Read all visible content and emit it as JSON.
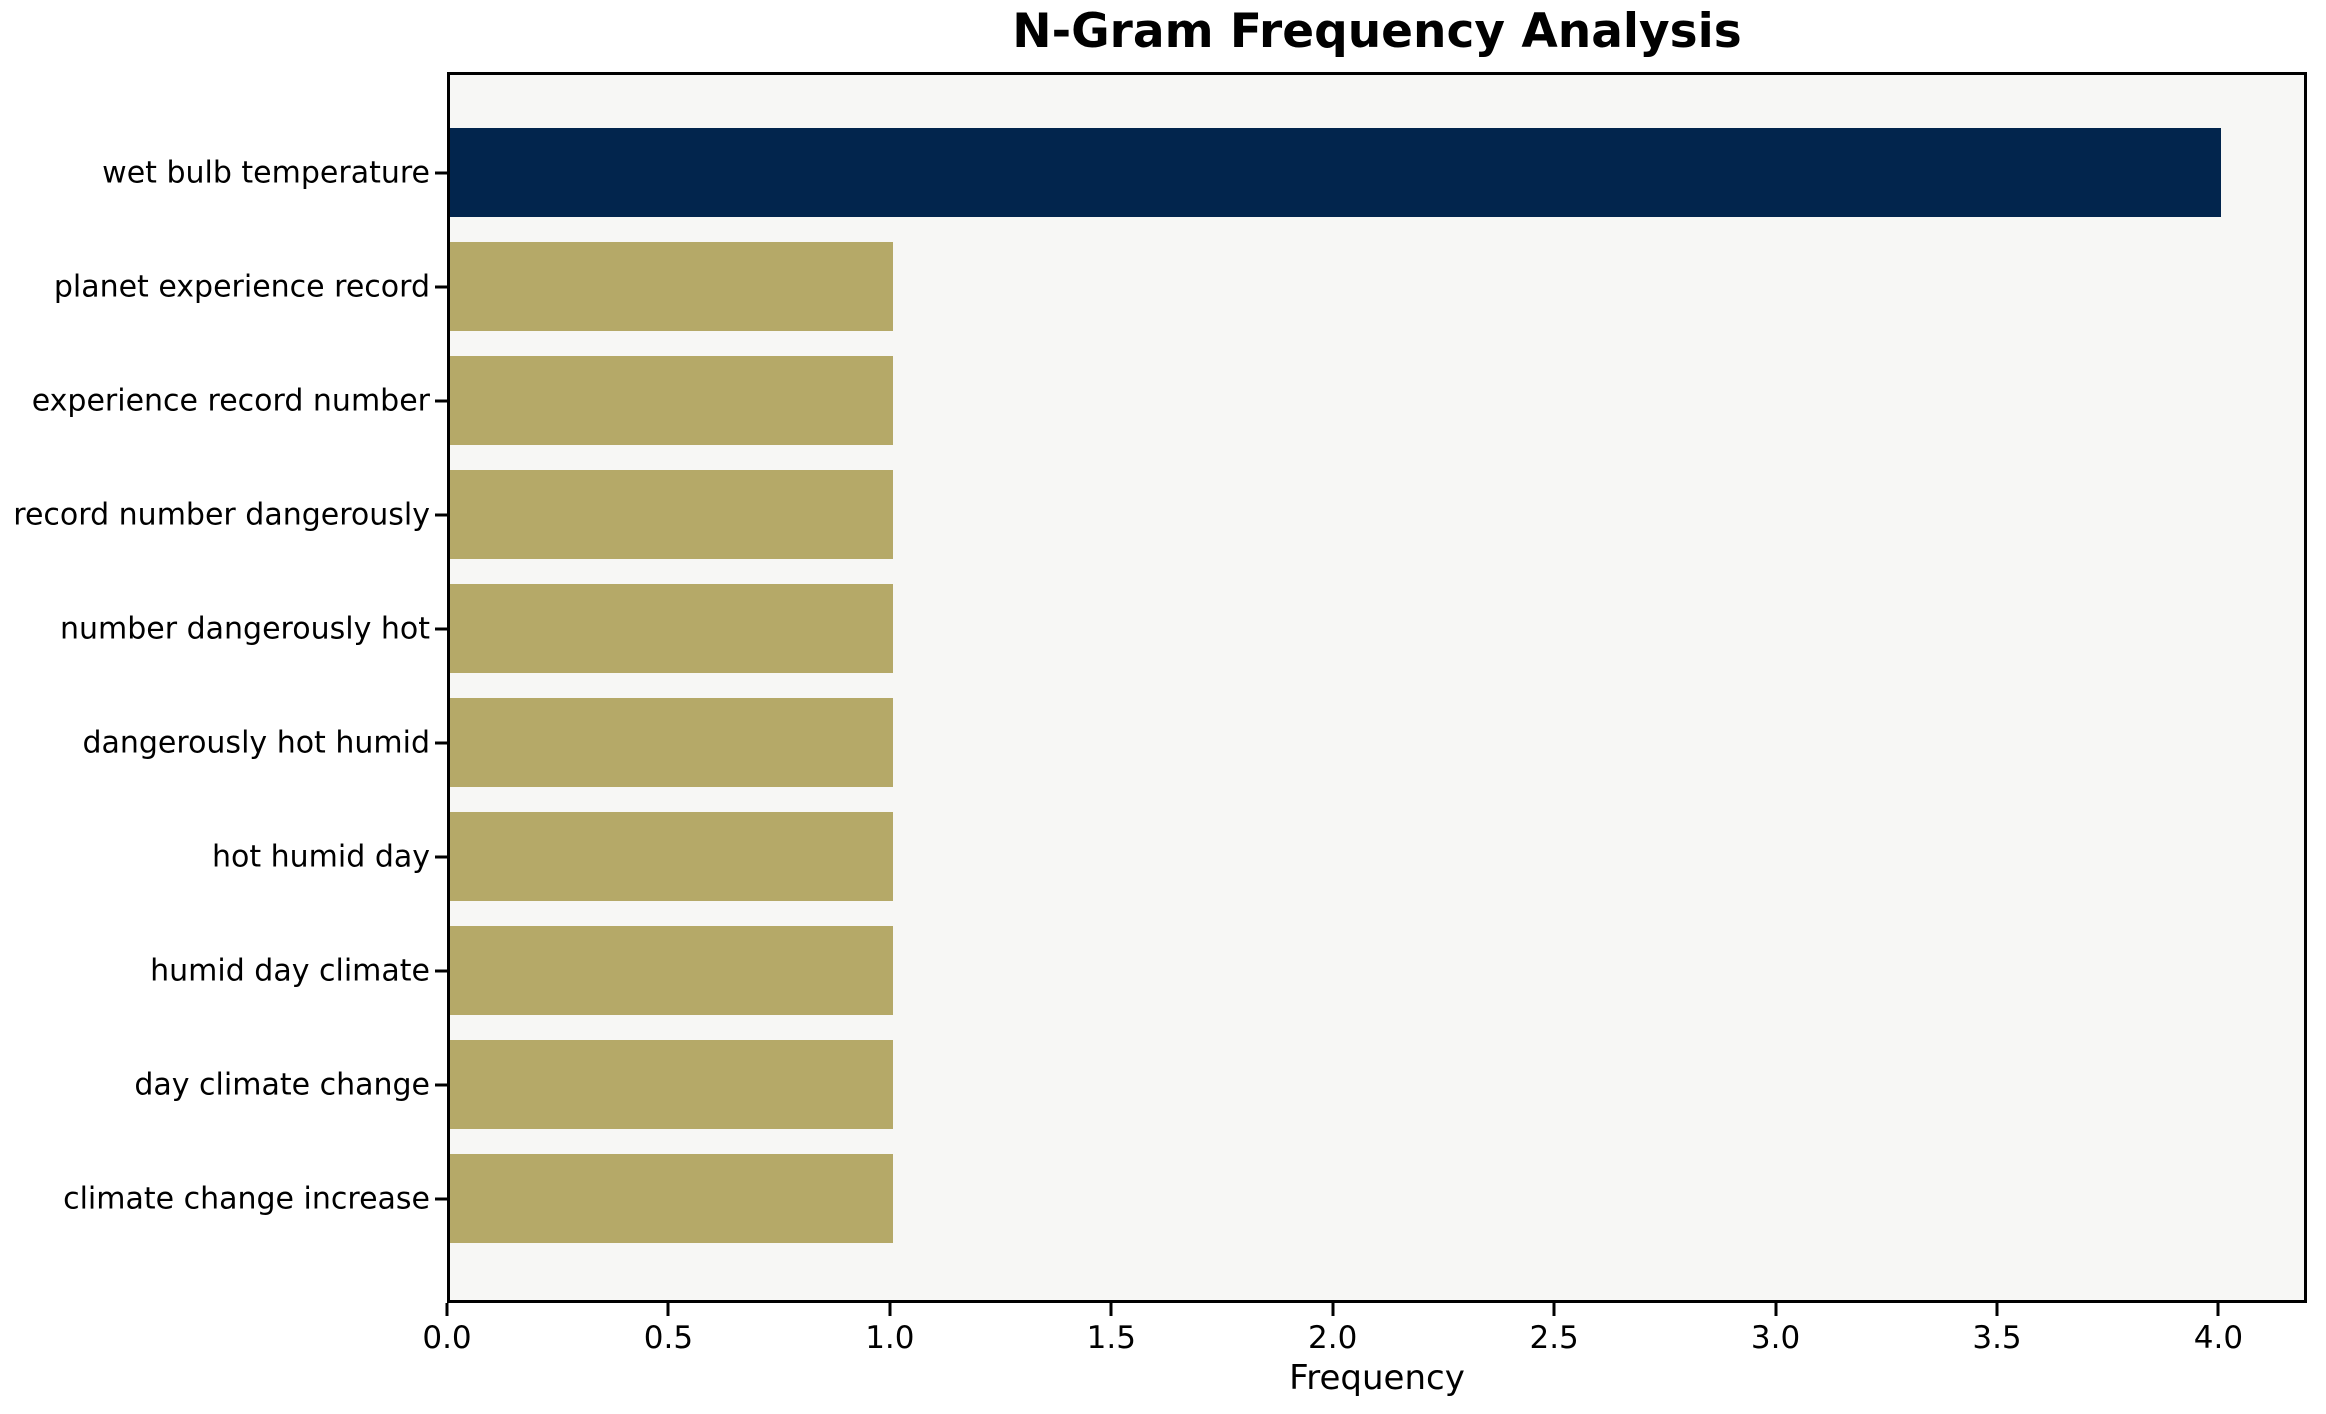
{
  "chart_data": {
    "type": "bar",
    "orientation": "horizontal",
    "title": "N-Gram Frequency Analysis",
    "xlabel": "Frequency",
    "ylabel": "",
    "categories": [
      "wet bulb temperature",
      "planet experience record",
      "experience record number",
      "record number dangerously",
      "number dangerously hot",
      "dangerously hot humid",
      "hot humid day",
      "humid day climate",
      "day climate change",
      "climate change increase"
    ],
    "values": [
      4,
      1,
      1,
      1,
      1,
      1,
      1,
      1,
      1,
      1
    ],
    "bar_colors": [
      "#02254d",
      "#b5a968",
      "#b5a968",
      "#b5a968",
      "#b5a968",
      "#b5a968",
      "#b5a968",
      "#b5a968",
      "#b5a968",
      "#b5a968"
    ],
    "xlim": [
      0,
      4.2
    ],
    "xtick_values": [
      0,
      0.5,
      1,
      1.5,
      2,
      2.5,
      3,
      3.5,
      4
    ],
    "xtick_labels": [
      "0.0",
      "0.5",
      "1.0",
      "1.5",
      "2.0",
      "2.5",
      "3.0",
      "3.5",
      "4.0"
    ],
    "grid": false,
    "legend_position": "none",
    "colors": {
      "highlight_bar": "#02254d",
      "default_bar": "#b5a968",
      "plot_background": "#f7f7f5",
      "figure_background": "#ffffff",
      "spine": "#000000",
      "text": "#000000"
    }
  }
}
